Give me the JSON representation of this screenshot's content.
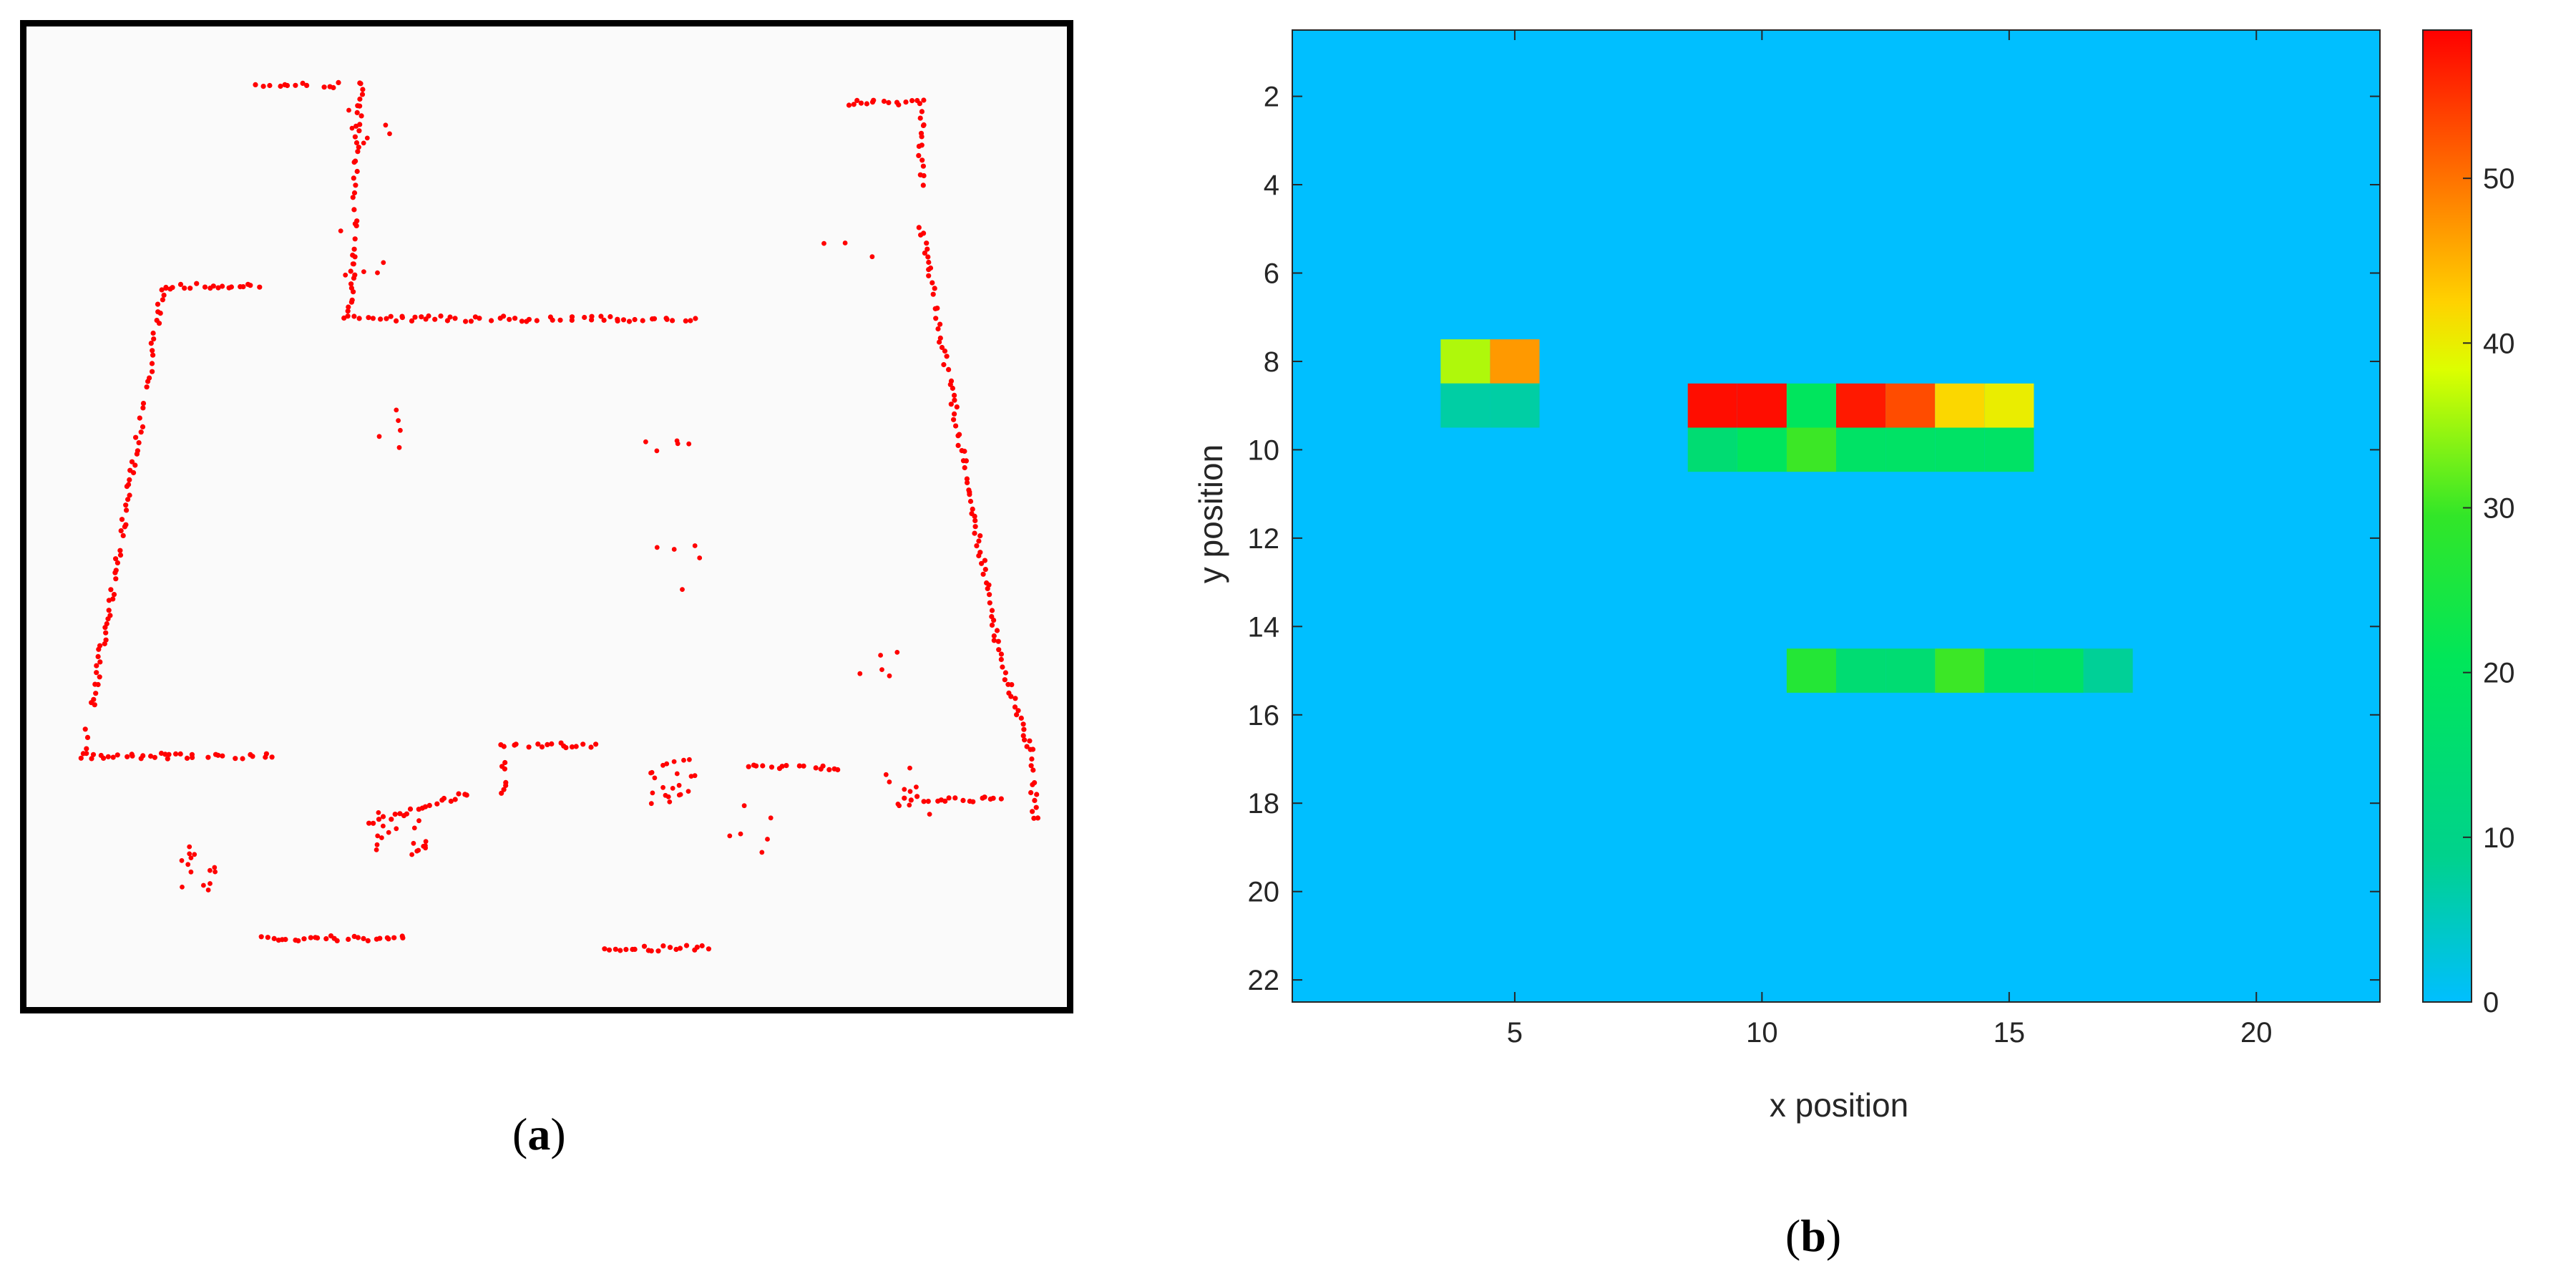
{
  "panel_a": {
    "caption_letter": "a",
    "point_color": "#ff0000",
    "background_color": "#fafafa",
    "frame_color": "#000000"
  },
  "panel_b": {
    "caption_letter": "b"
  },
  "chart_data": [
    {
      "type": "scatter",
      "panel": "a",
      "title": "",
      "xlabel": "",
      "ylabel": "",
      "description_note": "",
      "series": [
        {
          "name": "",
          "color": "#ff0000",
          "segments": [
            {
              "from": [
                0.222,
                0.93
              ],
              "to": [
                0.364,
                0.93
              ]
            },
            {
              "from": [
                0.138,
                0.744
              ],
              "to": [
                0.238,
                0.744
              ]
            },
            {
              "from": [
                0.055,
                0.744
              ],
              "to": [
                0.138,
                0.744
              ]
            },
            {
              "from": [
                0.055,
                0.744
              ],
              "to": [
                0.132,
                0.265
              ]
            },
            {
              "from": [
                0.132,
                0.265
              ],
              "to": [
                0.222,
                0.265
              ]
            },
            {
              "from": [
                0.306,
                0.298
              ],
              "to": [
                0.642,
                0.298
              ]
            },
            {
              "from": [
                0.311,
                0.298
              ],
              "to": [
                0.321,
                0.058
              ]
            },
            {
              "from": [
                0.222,
                0.06
              ],
              "to": [
                0.33,
                0.06
              ]
            },
            {
              "from": [
                0.788,
                0.078
              ],
              "to": [
                0.86,
                0.078
              ]
            },
            {
              "from": [
                0.86,
                0.078
              ],
              "to": [
                0.86,
                0.16
              ]
            },
            {
              "from": [
                0.86,
                0.205
              ],
              "to": [
                0.935,
                0.64
              ]
            },
            {
              "from": [
                0.935,
                0.64
              ],
              "to": [
                0.965,
                0.74
              ]
            },
            {
              "from": [
                0.965,
                0.74
              ],
              "to": [
                0.97,
                0.81
              ]
            },
            {
              "from": [
                0.458,
                0.733
              ],
              "to": [
                0.545,
                0.733
              ]
            },
            {
              "from": [
                0.458,
                0.733
              ],
              "to": [
                0.458,
                0.79
              ]
            },
            {
              "from": [
                0.693,
                0.756
              ],
              "to": [
                0.782,
                0.756
              ]
            },
            {
              "from": [
                0.845,
                0.788
              ],
              "to": [
                0.94,
                0.788
              ]
            },
            {
              "from": [
                0.558,
                0.94
              ],
              "to": [
                0.655,
                0.94
              ]
            },
            {
              "from": [
                0.33,
                0.812
              ],
              "to": [
                0.425,
                0.782
              ]
            }
          ],
          "clusters": [
            {
              "center": [
                0.33,
                0.1
              ],
              "count": 6
            },
            {
              "center": [
                0.32,
                0.23
              ],
              "count": 6
            },
            {
              "center": [
                0.34,
                0.41
              ],
              "count": 5
            },
            {
              "center": [
                0.616,
                0.425
              ],
              "count": 5
            },
            {
              "center": [
                0.625,
                0.555
              ],
              "count": 5
            },
            {
              "center": [
                0.82,
                0.656
              ],
              "count": 5
            },
            {
              "center": [
                0.36,
                0.82
              ],
              "count": 18
            },
            {
              "center": [
                0.62,
                0.77
              ],
              "count": 22
            },
            {
              "center": [
                0.7,
                0.82
              ],
              "count": 6
            },
            {
              "center": [
                0.85,
                0.78
              ],
              "count": 10
            },
            {
              "center": [
                0.16,
                0.86
              ],
              "count": 14
            },
            {
              "center": [
                0.79,
                0.215
              ],
              "count": 3
            }
          ]
        }
      ]
    },
    {
      "type": "heatmap",
      "panel": "b",
      "title": "",
      "xlabel": "x position",
      "ylabel": "y position",
      "xlim": [
        0.5,
        22.5
      ],
      "ylim": [
        22.5,
        0.5
      ],
      "x_ticks": [
        5,
        10,
        15,
        20
      ],
      "y_ticks": [
        2,
        4,
        6,
        8,
        10,
        12,
        14,
        16,
        18,
        20,
        22
      ],
      "colorbar": {
        "range": [
          0,
          59
        ],
        "ticks": [
          0,
          10,
          20,
          30,
          40,
          50
        ],
        "colormap": [
          "#00bfff",
          "#00d28c",
          "#00e65a",
          "#32e628",
          "#dcff00",
          "#ffd200",
          "#ff9600",
          "#ff4b00",
          "#ff0000"
        ],
        "colormap_stops": [
          0.0,
          0.15,
          0.35,
          0.5,
          0.65,
          0.72,
          0.8,
          0.9,
          1.0
        ]
      },
      "grid": false,
      "background_value": 0,
      "cells": [
        {
          "x": 4,
          "y": 8,
          "value": 36
        },
        {
          "x": 5,
          "y": 8,
          "value": 47
        },
        {
          "x": 4,
          "y": 9,
          "value": 7
        },
        {
          "x": 5,
          "y": 9,
          "value": 7
        },
        {
          "x": 9,
          "y": 9,
          "value": 58
        },
        {
          "x": 10,
          "y": 9,
          "value": 58
        },
        {
          "x": 11,
          "y": 9,
          "value": 20
        },
        {
          "x": 12,
          "y": 9,
          "value": 57
        },
        {
          "x": 13,
          "y": 9,
          "value": 53
        },
        {
          "x": 14,
          "y": 9,
          "value": 42
        },
        {
          "x": 15,
          "y": 9,
          "value": 40
        },
        {
          "x": 9,
          "y": 10,
          "value": 15
        },
        {
          "x": 10,
          "y": 10,
          "value": 20
        },
        {
          "x": 11,
          "y": 10,
          "value": 30
        },
        {
          "x": 12,
          "y": 10,
          "value": 18
        },
        {
          "x": 13,
          "y": 10,
          "value": 18
        },
        {
          "x": 14,
          "y": 10,
          "value": 18
        },
        {
          "x": 15,
          "y": 10,
          "value": 18
        },
        {
          "x": 11,
          "y": 15,
          "value": 27
        },
        {
          "x": 12,
          "y": 15,
          "value": 15
        },
        {
          "x": 13,
          "y": 15,
          "value": 15
        },
        {
          "x": 14,
          "y": 15,
          "value": 30
        },
        {
          "x": 15,
          "y": 15,
          "value": 18
        },
        {
          "x": 16,
          "y": 15,
          "value": 18
        },
        {
          "x": 17,
          "y": 15,
          "value": 8
        }
      ]
    }
  ]
}
